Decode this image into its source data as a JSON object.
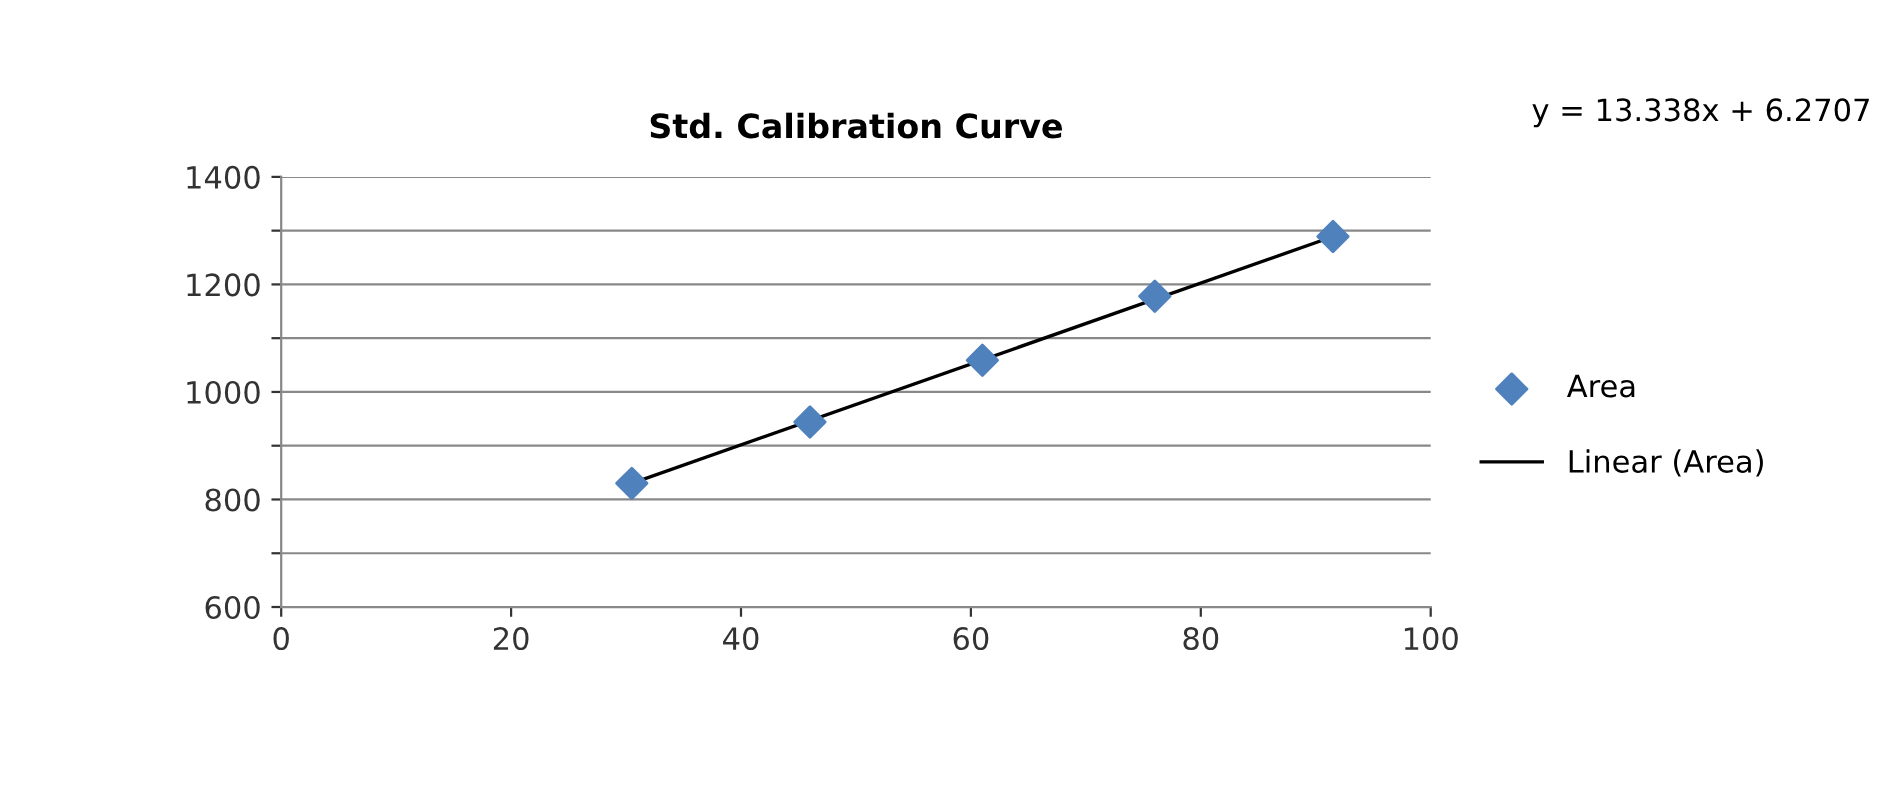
{
  "chart_data": {
    "type": "scatter",
    "title": "Std. Calibration Curve",
    "annotations": [
      "y = 13.338x + 6.2707"
    ],
    "xlim": [
      0,
      100
    ],
    "xticks": [
      0,
      20,
      40,
      60,
      80,
      100
    ],
    "ylim": [
      600,
      1400
    ],
    "yticks": [
      600,
      {
        "value": 700,
        "label": null
      },
      800,
      {
        "value": 900,
        "label": null
      },
      1000,
      {
        "value": 1100,
        "label": null
      },
      1200,
      {
        "value": 1300,
        "label": null
      },
      1400
    ],
    "grid": "y",
    "legend": "right",
    "marker": "diamond",
    "series": [
      {
        "name": "Area",
        "color": "#4f81bd",
        "x": [
          30.5,
          46,
          61,
          76,
          91.5
        ],
        "values": [
          830,
          944,
          1059,
          1178,
          1289
        ]
      },
      {
        "name": "Linear (Area)",
        "type": "line",
        "color": "#000000",
        "x": [
          30.5,
          91.5
        ],
        "values": [
          830,
          1289
        ],
        "marker": "none",
        "line_style": "solid"
      }
    ]
  }
}
